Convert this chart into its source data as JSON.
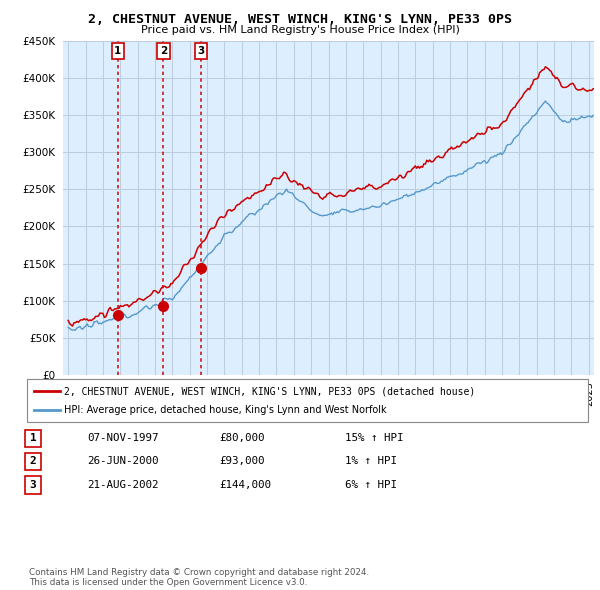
{
  "title": "2, CHESTNUT AVENUE, WEST WINCH, KING'S LYNN, PE33 0PS",
  "subtitle": "Price paid vs. HM Land Registry's House Price Index (HPI)",
  "sale_dates_float": [
    1997.854,
    2000.479,
    2002.638
  ],
  "sale_prices": [
    80000,
    93000,
    144000
  ],
  "sale_labels": [
    "1",
    "2",
    "3"
  ],
  "legend_line1": "2, CHESTNUT AVENUE, WEST WINCH, KING'S LYNN, PE33 0PS (detached house)",
  "legend_line2": "HPI: Average price, detached house, King's Lynn and West Norfolk",
  "table_rows": [
    [
      "1",
      "07-NOV-1997",
      "£80,000",
      "15% ↑ HPI"
    ],
    [
      "2",
      "26-JUN-2000",
      "£93,000",
      "1% ↑ HPI"
    ],
    [
      "3",
      "21-AUG-2002",
      "£144,000",
      "6% ↑ HPI"
    ]
  ],
  "footer": "Contains HM Land Registry data © Crown copyright and database right 2024.\nThis data is licensed under the Open Government Licence v3.0.",
  "ylim": [
    0,
    450000
  ],
  "yticks": [
    0,
    50000,
    100000,
    150000,
    200000,
    250000,
    300000,
    350000,
    400000,
    450000
  ],
  "red_line_color": "#cc0000",
  "blue_line_color": "#5599cc",
  "chart_bg_color": "#ddeeff",
  "sale_dot_color": "#cc0000",
  "vline_color": "#cc0000",
  "background_color": "#ffffff",
  "grid_color": "#bbccdd"
}
